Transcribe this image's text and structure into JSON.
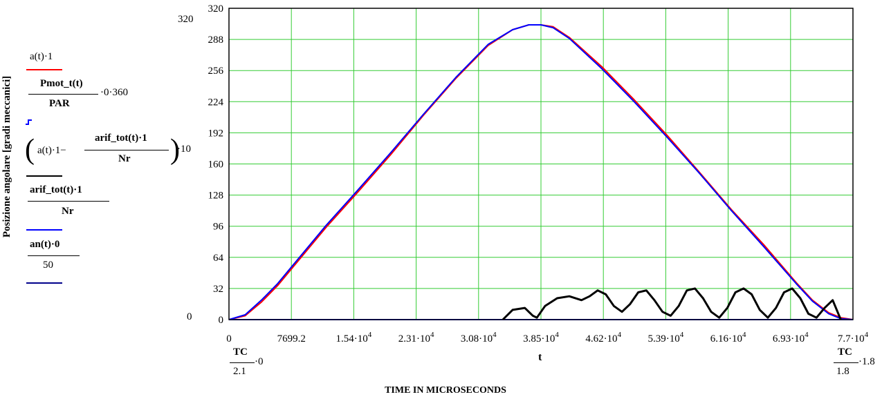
{
  "chart_data": {
    "type": "line",
    "ylabel": "Posizione angolare [gradi meccanici]",
    "xlabel": "t",
    "footer_label": "TIME IN MICROSECONDS",
    "x_range": [
      0,
      77000
    ],
    "y_range": [
      0,
      320
    ],
    "ylim_labels": {
      "top_outer": "320",
      "bottom_outer": "0"
    },
    "grid": true,
    "y_ticks": [
      0,
      32,
      64,
      96,
      128,
      160,
      192,
      224,
      256,
      288,
      320
    ],
    "x_ticks": [
      {
        "value": 0,
        "label": "0",
        "exp": ""
      },
      {
        "value": 7699.2,
        "label": "7699.2",
        "exp": ""
      },
      {
        "value": 15400,
        "label": "1.54·10",
        "exp": "4"
      },
      {
        "value": 23100,
        "label": "2.31·10",
        "exp": "4"
      },
      {
        "value": 30800,
        "label": "3.08·10",
        "exp": "4"
      },
      {
        "value": 38500,
        "label": "3.85·10",
        "exp": "4"
      },
      {
        "value": 46200,
        "label": "4.62·10",
        "exp": "4"
      },
      {
        "value": 53900,
        "label": "5.39·10",
        "exp": "4"
      },
      {
        "value": 61600,
        "label": "6.16·10",
        "exp": "4"
      },
      {
        "value": 69300,
        "label": "6.93·10",
        "exp": "4"
      },
      {
        "value": 77000,
        "label": "7.7·10",
        "exp": "4"
      }
    ],
    "x_limit_exprs": {
      "left": {
        "num": "TC",
        "den": "2.1",
        "mult": "·0"
      },
      "right": {
        "num": "TC",
        "den": "1.8",
        "mult": "·1.8"
      }
    },
    "colors": {
      "grid": "#33cc33",
      "red": "#ff0000",
      "blue": "#0000ff",
      "black": "#000000"
    },
    "series": [
      {
        "color": "#ff0000",
        "x": [
          0,
          2000,
          4000,
          6000,
          8000,
          12000,
          16000,
          20000,
          24000,
          28000,
          32000,
          35000,
          37000,
          38500,
          40000,
          42000,
          46000,
          50000,
          54000,
          58000,
          62000,
          66000,
          70000,
          72000,
          74000,
          75500,
          77000
        ],
        "y": [
          0,
          4,
          18,
          35,
          55,
          95,
          132,
          170,
          210,
          248,
          282,
          298,
          303,
          303,
          301,
          290,
          260,
          226,
          190,
          152,
          113,
          77,
          38,
          20,
          7,
          2,
          0
        ]
      },
      {
        "color": "#0000ff",
        "x": [
          0,
          2000,
          4000,
          6000,
          8000,
          12000,
          16000,
          20000,
          24000,
          28000,
          32000,
          35000,
          37000,
          38500,
          40000,
          42000,
          46000,
          50000,
          54000,
          58000,
          62000,
          66000,
          70000,
          72000,
          74000,
          75500,
          77000
        ],
        "y": [
          0,
          5,
          20,
          37,
          57,
          97,
          134,
          172,
          211,
          249,
          283,
          298,
          303,
          303,
          300,
          289,
          258,
          224,
          188,
          151,
          112,
          75,
          37,
          19,
          6,
          1,
          0
        ]
      },
      {
        "color": "#0000ff",
        "x": [
          0,
          77000
        ],
        "y": [
          0,
          0
        ]
      },
      {
        "color": "#000000",
        "x": [
          33800,
          35000,
          36500,
          37500,
          38000,
          39000,
          40500,
          42000,
          43500,
          44500,
          45500,
          46500,
          47500,
          48500,
          49500,
          50500,
          51500,
          52500,
          53500,
          54500,
          55500,
          56500,
          57500,
          58500,
          59500,
          60500,
          61500,
          62500,
          63500,
          64500,
          65500,
          66500,
          67500,
          68500,
          69500,
          70500,
          71500,
          72500,
          73500,
          74500,
          75500
        ],
        "y": [
          0,
          10,
          12,
          4,
          2,
          14,
          22,
          24,
          20,
          24,
          30,
          26,
          14,
          8,
          16,
          28,
          30,
          20,
          8,
          4,
          14,
          30,
          32,
          22,
          8,
          2,
          12,
          28,
          32,
          26,
          10,
          2,
          12,
          28,
          32,
          22,
          6,
          2,
          12,
          20,
          0
        ]
      }
    ]
  },
  "legend": [
    {
      "id": "a",
      "expr": "a(t)·1",
      "color": "#ff0000",
      "style": "solid"
    },
    {
      "id": "pmot",
      "num": "Pmot_t(t)",
      "den": "PAR",
      "mult": "·0·360",
      "color": "#0000ff",
      "style": "step"
    },
    {
      "id": "diff",
      "pre": "a(t)·1−",
      "num": "arif_tot(t)·1",
      "den": "Nr",
      "mult": "·10",
      "color": "#000000",
      "style": "solid"
    },
    {
      "id": "arif",
      "num": "arif_tot(t)·1",
      "den": "Nr",
      "color": "#0000ff",
      "style": "solid"
    },
    {
      "id": "an",
      "num": "an(t)·0",
      "den": "50",
      "color": "#00008b",
      "style": "solid"
    }
  ]
}
